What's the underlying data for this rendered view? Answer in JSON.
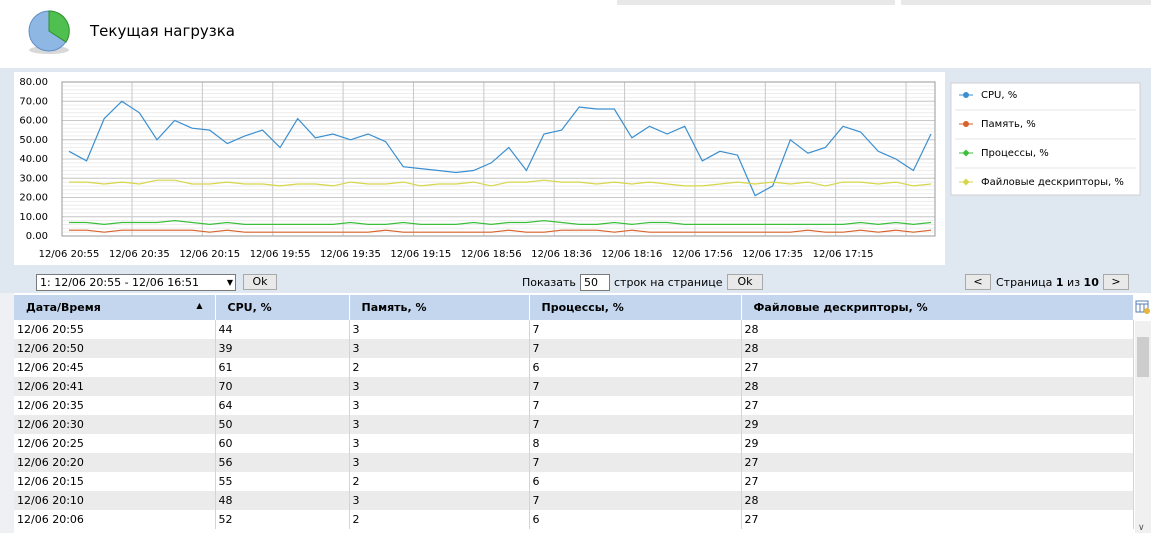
{
  "header": {
    "title": "Текущая нагрузка"
  },
  "chart_data": {
    "type": "line",
    "categories": [
      "12/06 20:55",
      null,
      null,
      null,
      "12/06 20:35",
      null,
      null,
      null,
      "12/06 20:15",
      null,
      null,
      null,
      "12/06 19:55",
      null,
      null,
      null,
      "12/06 19:35",
      null,
      null,
      null,
      "12/06 19:15",
      null,
      null,
      null,
      "12/06 18:56",
      null,
      null,
      null,
      "12/06 18:36",
      null,
      null,
      null,
      "12/06 18:16",
      null,
      null,
      null,
      "12/06 17:56",
      null,
      null,
      null,
      "12/06 17:35",
      null,
      null,
      null,
      "12/06 17:15",
      null,
      null,
      null,
      null,
      null
    ],
    "series": [
      {
        "name": "CPU, %",
        "color": "#3a8fd0",
        "marker": "circle",
        "values": [
          44,
          39,
          61,
          70,
          64,
          50,
          60,
          56,
          55,
          48,
          52,
          55,
          46,
          61,
          51,
          53,
          50,
          53,
          49,
          36,
          35,
          34,
          33,
          34,
          38,
          46,
          34,
          53,
          55,
          67,
          66,
          66,
          51,
          57,
          53,
          57,
          39,
          44,
          42,
          21,
          26,
          50,
          43,
          46,
          57,
          54,
          44,
          40,
          34,
          53
        ]
      },
      {
        "name": "Память, %",
        "color": "#d9622b",
        "marker": "circle",
        "values": [
          3,
          3,
          2,
          3,
          3,
          3,
          3,
          3,
          2,
          3,
          2,
          2,
          2,
          2,
          2,
          2,
          2,
          2,
          3,
          2,
          2,
          2,
          2,
          2,
          2,
          3,
          2,
          2,
          3,
          3,
          3,
          2,
          3,
          2,
          2,
          2,
          2,
          2,
          2,
          2,
          2,
          2,
          3,
          2,
          2,
          3,
          2,
          3,
          2,
          3
        ]
      },
      {
        "name": "Процессы, %",
        "color": "#3cbf3c",
        "marker": "diamond",
        "values": [
          7,
          7,
          6,
          7,
          7,
          7,
          8,
          7,
          6,
          7,
          6,
          6,
          6,
          6,
          6,
          6,
          7,
          6,
          6,
          7,
          6,
          6,
          6,
          7,
          6,
          7,
          7,
          8,
          7,
          6,
          6,
          7,
          6,
          7,
          7,
          6,
          6,
          6,
          6,
          6,
          6,
          6,
          6,
          6,
          6,
          7,
          6,
          7,
          6,
          7
        ]
      },
      {
        "name": "Файловые дескрипторы, %",
        "color": "#d6d64a",
        "marker": "diamond",
        "values": [
          28,
          28,
          27,
          28,
          27,
          29,
          29,
          27,
          27,
          28,
          27,
          27,
          26,
          27,
          27,
          26,
          28,
          27,
          27,
          28,
          26,
          27,
          27,
          28,
          26,
          28,
          28,
          29,
          28,
          28,
          27,
          28,
          27,
          28,
          27,
          26,
          26,
          27,
          28,
          27,
          28,
          27,
          28,
          26,
          28,
          28,
          27,
          28,
          26,
          27
        ]
      }
    ],
    "ylim": [
      0,
      80
    ],
    "yticks": [
      {
        "value": 0,
        "label": "0.00"
      },
      {
        "value": 10,
        "label": "10.00"
      },
      {
        "value": 20,
        "label": "20.00"
      },
      {
        "value": 30,
        "label": "30.00"
      },
      {
        "value": 40,
        "label": "40.00"
      },
      {
        "value": 50,
        "label": "50.00"
      },
      {
        "value": 60,
        "label": "60.00"
      },
      {
        "value": 70,
        "label": "70.00"
      },
      {
        "value": 80,
        "label": "80.00"
      }
    ],
    "grid": true,
    "legend": "right"
  },
  "controls": {
    "range": "1: 12/06 20:55 - 12/06 16:51",
    "ok": "Ok",
    "show": "Показать",
    "rows_per_page": 50,
    "rows_suffix": "строк на странице",
    "ok2": "Ok",
    "prev": "<",
    "page_label": "Страница",
    "page": 1,
    "of": "из",
    "pages": 10,
    "next": ">"
  },
  "table": {
    "columns": [
      "Дата/Время",
      "CPU, %",
      "Память, %",
      "Процессы, %",
      "Файловые дескрипторы, %"
    ],
    "rows": [
      [
        "12/06 20:55",
        44,
        3,
        7,
        28
      ],
      [
        "12/06 20:50",
        39,
        3,
        7,
        28
      ],
      [
        "12/06 20:45",
        61,
        2,
        6,
        27
      ],
      [
        "12/06 20:41",
        70,
        3,
        7,
        28
      ],
      [
        "12/06 20:35",
        64,
        3,
        7,
        27
      ],
      [
        "12/06 20:30",
        50,
        3,
        7,
        29
      ],
      [
        "12/06 20:25",
        60,
        3,
        8,
        29
      ],
      [
        "12/06 20:20",
        56,
        3,
        7,
        27
      ],
      [
        "12/06 20:15",
        55,
        2,
        6,
        27
      ],
      [
        "12/06 20:10",
        48,
        3,
        7,
        28
      ],
      [
        "12/06 20:06",
        52,
        2,
        6,
        27
      ]
    ]
  }
}
